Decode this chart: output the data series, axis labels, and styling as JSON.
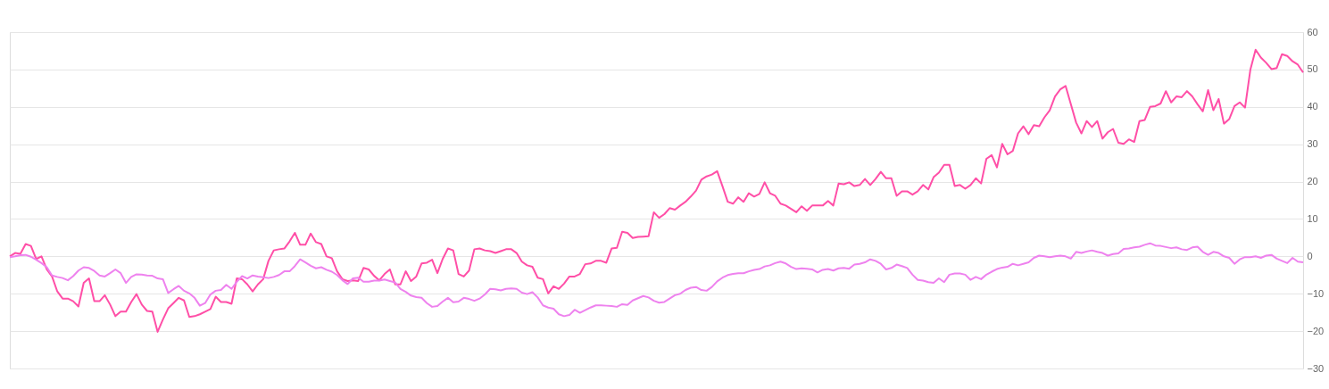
{
  "chart_data": {
    "type": "line",
    "categories": [
      null,
      null,
      null,
      null,
      null,
      null,
      null,
      null,
      null,
      null,
      null,
      null,
      null,
      null,
      null,
      null,
      null,
      null,
      null,
      null,
      null,
      null,
      null,
      null,
      null,
      null,
      null,
      null,
      null,
      null,
      null,
      null,
      null,
      null,
      null,
      null,
      null,
      null,
      null,
      null,
      null,
      null,
      null,
      null,
      null,
      null,
      null,
      null,
      null,
      null,
      null,
      null,
      null,
      null,
      null,
      null,
      null,
      null,
      null,
      null,
      null,
      null,
      null,
      null,
      null,
      null,
      null,
      null,
      null,
      null,
      null,
      null,
      null,
      null,
      null,
      null,
      null,
      null,
      null,
      null,
      null,
      null,
      null,
      null,
      null,
      null,
      null,
      null,
      null,
      null,
      null,
      null,
      null,
      null,
      null,
      null,
      null,
      null,
      null,
      null,
      null,
      null,
      null,
      null,
      null,
      null,
      null,
      null,
      null,
      null,
      null,
      null,
      null,
      null,
      null,
      null,
      null,
      null,
      null,
      null,
      null,
      null,
      null,
      null,
      null,
      null,
      null,
      null,
      null,
      null,
      null,
      null,
      null,
      null,
      null,
      null,
      null,
      null,
      null,
      null,
      null,
      null,
      null,
      null,
      null,
      null,
      null,
      null,
      null,
      null,
      null,
      null,
      null,
      null,
      null,
      null,
      null,
      null,
      null,
      null,
      null,
      null,
      null,
      null,
      null,
      null,
      null,
      null,
      null,
      null,
      null,
      null,
      null,
      null,
      null,
      null,
      null,
      null,
      null,
      null,
      null,
      null,
      null,
      null,
      null,
      null,
      null,
      null,
      null,
      null,
      null,
      null,
      null,
      null,
      null,
      null,
      null,
      null,
      null,
      null,
      null,
      null,
      null,
      null,
      null,
      null,
      null,
      null,
      null,
      null,
      null,
      null,
      null,
      null,
      null,
      null,
      null,
      null,
      null,
      null,
      null,
      null,
      null,
      null,
      null,
      null,
      null,
      null,
      null,
      null,
      null,
      null,
      null,
      null,
      null,
      null,
      null,
      null,
      null,
      null,
      null,
      null,
      null,
      null,
      null,
      null
    ],
    "series": [
      {
        "color": "#ff4fa7",
        "values": [
          0,
          0.9,
          0.7,
          3.3,
          2.8,
          -0.7,
          0,
          -3.5,
          -5.4,
          -9.4,
          -11.3,
          -11.3,
          -12,
          -13.4,
          -7.1,
          -5.9,
          -12,
          -12,
          -10.4,
          -12.9,
          -16,
          -14.8,
          -14.8,
          -12.2,
          -10.1,
          -12.9,
          -14.6,
          -14.8,
          -20.2,
          -16.9,
          -13.9,
          -12.5,
          -11.1,
          -11.8,
          -16.2,
          -16,
          -15.5,
          -14.8,
          -14.1,
          -10.8,
          -12.2,
          -12.2,
          -12.7,
          -5.9,
          -6.1,
          -7.5,
          -9.4,
          -7.5,
          -6.1,
          -1.2,
          1.6,
          1.9,
          2.1,
          4,
          6.3,
          3.1,
          3.1,
          6.1,
          3.8,
          3.3,
          0,
          -0.5,
          -4,
          -6.1,
          -6.6,
          -6.4,
          -6.6,
          -3.1,
          -3.5,
          -5.2,
          -6.4,
          -4.7,
          -3.5,
          -7.5,
          -7.5,
          -4,
          -6.6,
          -5.4,
          -1.9,
          -1.7,
          -0.9,
          -4.5,
          -0.7,
          2.1,
          1.6,
          -4.7,
          -5.4,
          -3.8,
          1.9,
          2.1,
          1.6,
          1.4,
          0.9,
          1.4,
          1.9,
          1.9,
          0.9,
          -1.4,
          -2.4,
          -2.8,
          -5.7,
          -6.1,
          -9.9,
          -8,
          -8.7,
          -7.3,
          -5.4,
          -5.4,
          -4.7,
          -2.1,
          -1.9,
          -1.2,
          -1.2,
          -1.7,
          2.1,
          2.3,
          6.6,
          6.3,
          4.9,
          5.2,
          5.3,
          5.4,
          11.8,
          10.3,
          11.3,
          12.9,
          12.5,
          13.6,
          14.6,
          16,
          17.6,
          20.5,
          21.4,
          21.9,
          22.8,
          18.8,
          14.6,
          14.1,
          15.8,
          14.6,
          16.9,
          16,
          16.7,
          19.8,
          16.9,
          16.2,
          14.1,
          13.6,
          12.7,
          11.8,
          13.4,
          12.2,
          13.6,
          13.6,
          13.6,
          14.8,
          13.6,
          19.5,
          19.3,
          19.8,
          18.8,
          19.1,
          20.7,
          19.1,
          20.7,
          22.6,
          20.9,
          20.9,
          16.2,
          17.4,
          17.4,
          16.5,
          17.4,
          19.1,
          17.9,
          21.2,
          22.4,
          24.5,
          24.5,
          18.8,
          19.1,
          18.1,
          19.1,
          20.9,
          19.5,
          26.1,
          27.1,
          23.8,
          30.1,
          27.3,
          28.2,
          32.9,
          34.8,
          32.7,
          35.1,
          34.8,
          37.2,
          39.1,
          42.8,
          44.7,
          45.6,
          40.7,
          35.8,
          32.9,
          36.2,
          34.6,
          36.2,
          31.5,
          33.2,
          34.1,
          30.4,
          30.1,
          31.3,
          30.6,
          36.2,
          36.5,
          40,
          40.2,
          40.9,
          44.2,
          41.2,
          42.8,
          42.6,
          44.2,
          42.8,
          40.7,
          38.8,
          44.5,
          39.1,
          42.1,
          35.5,
          36.7,
          40.2,
          41.2,
          39.8,
          49.9,
          55.3,
          53.2,
          51.8,
          50.1,
          50.4,
          54.1,
          53.6,
          52.2,
          51.3,
          49.2
        ]
      },
      {
        "color": "#ee82ee",
        "values": [
          -0.2,
          0,
          0.3,
          0.4,
          -0.1,
          -0.9,
          -1.8,
          -2.9,
          -5.1,
          -5.5,
          -5.8,
          -6.4,
          -5.3,
          -3.8,
          -2.9,
          -3.1,
          -3.9,
          -5.1,
          -5.4,
          -4.5,
          -3.5,
          -4.5,
          -7.1,
          -5.5,
          -4.8,
          -4.9,
          -5.1,
          -5.2,
          -5.9,
          -6.1,
          -9.8,
          -8.8,
          -7.9,
          -9.2,
          -9.9,
          -11.1,
          -13.2,
          -12.5,
          -10.2,
          -9.2,
          -9,
          -7.6,
          -8.7,
          -6.8,
          -5.3,
          -5.9,
          -5.1,
          -5.4,
          -5.6,
          -5.8,
          -5.5,
          -5,
          -4,
          -4,
          -2.6,
          -0.8,
          -1.6,
          -2.5,
          -3.2,
          -2.9,
          -3.6,
          -4.1,
          -5,
          -6.4,
          -7.4,
          -5.9,
          -5.7,
          -6.8,
          -6.8,
          -6.5,
          -6.5,
          -6.2,
          -6.6,
          -7,
          -8.7,
          -9.5,
          -10.5,
          -10.9,
          -11.1,
          -12.5,
          -13.5,
          -13.3,
          -12.1,
          -11.1,
          -12.3,
          -12.1,
          -11.1,
          -11.4,
          -11.9,
          -11.3,
          -10.2,
          -8.7,
          -8.8,
          -9.1,
          -8.7,
          -8.6,
          -8.7,
          -9.7,
          -10.1,
          -9.6,
          -11,
          -13.1,
          -13.7,
          -14,
          -15.5,
          -16,
          -15.7,
          -14.3,
          -15.1,
          -14.4,
          -13.7,
          -13.1,
          -13.1,
          -13.2,
          -13.3,
          -13.5,
          -12.8,
          -13,
          -11.8,
          -11.2,
          -10.6,
          -11,
          -11.9,
          -12.4,
          -12.2,
          -11.3,
          -10.4,
          -10,
          -9,
          -8.4,
          -8.2,
          -9,
          -9.2,
          -8.2,
          -6.7,
          -5.7,
          -5,
          -4.7,
          -4.5,
          -4.5,
          -4,
          -3.6,
          -3.4,
          -2.7,
          -2.4,
          -1.8,
          -1.4,
          -1.9,
          -2.8,
          -3.4,
          -3.2,
          -3.3,
          -3.5,
          -4.3,
          -3.6,
          -3.4,
          -3.8,
          -3.2,
          -3.1,
          -3.3,
          -2.2,
          -2,
          -1.6,
          -0.8,
          -1.2,
          -2,
          -3.5,
          -3.1,
          -2.2,
          -2.6,
          -3.1,
          -4.9,
          -6.3,
          -6.5,
          -6.9,
          -7.1,
          -5.9,
          -6.9,
          -4.9,
          -4.6,
          -4.6,
          -4.9,
          -6.3,
          -5.5,
          -6.1,
          -4.9,
          -4.1,
          -3.4,
          -3,
          -2.8,
          -2,
          -2.4,
          -2,
          -1.6,
          -0.4,
          0.2,
          0,
          -0.2,
          0,
          0.2,
          0,
          -0.6,
          1.2,
          0.9,
          1.3,
          1.6,
          1.2,
          0.9,
          0.2,
          0.6,
          0.8,
          2,
          2.1,
          2.4,
          2.6,
          3.1,
          3.5,
          2.9,
          2.8,
          2.5,
          2.2,
          2.4,
          1.9,
          1.7,
          2.4,
          2.6,
          1.2,
          0.4,
          1.2,
          0.9,
          0,
          -0.4,
          -2,
          -0.8,
          -0.2,
          -0.2,
          0,
          -0.4,
          0.2,
          0.4,
          -0.6,
          -1.2,
          -1.8,
          -0.4,
          -1.4,
          -1.6
        ]
      }
    ],
    "ylim": [
      -30,
      60
    ],
    "yticks": [
      -30,
      -20,
      -10,
      0,
      10,
      20,
      30,
      40,
      50,
      60
    ],
    "grid": "y",
    "tick_labels": "y"
  }
}
